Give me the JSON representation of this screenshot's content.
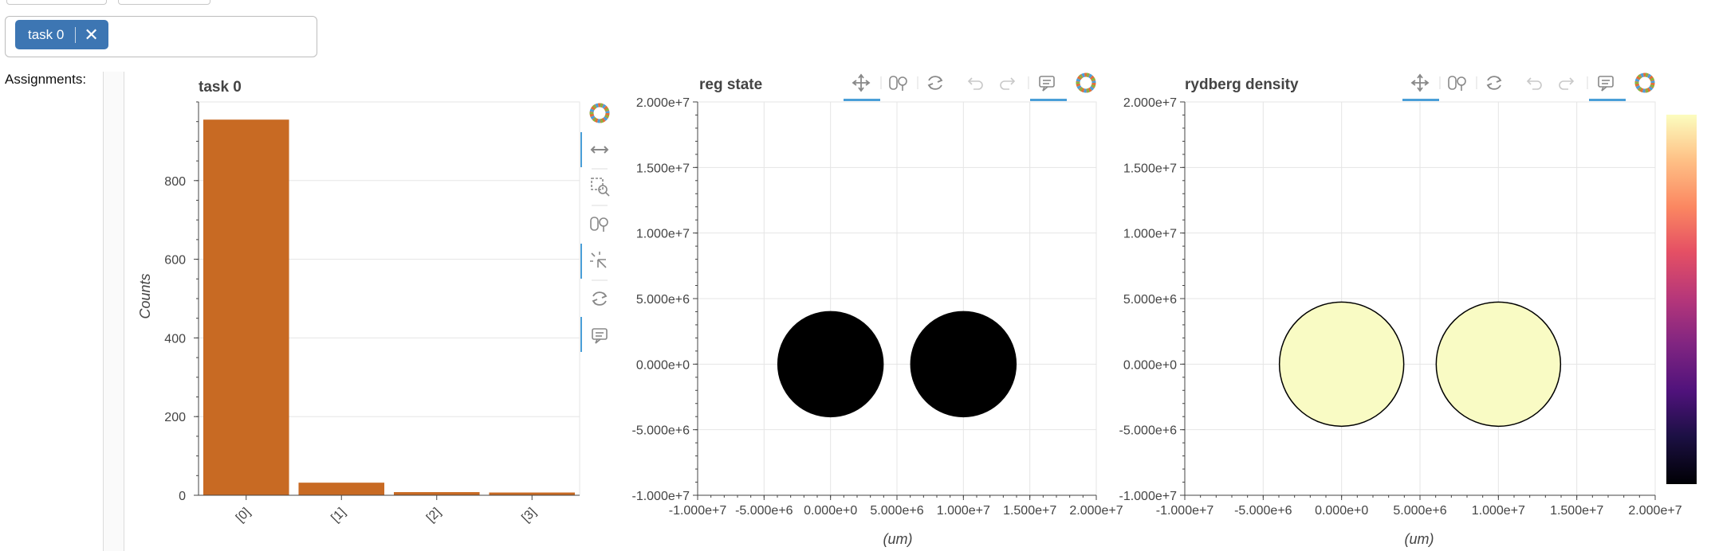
{
  "filter": {
    "chips": [
      {
        "label": "task 0",
        "remove_glyph": "✕"
      }
    ]
  },
  "assignments_label": "Assignments:",
  "colors": {
    "bar": "#c86a23",
    "dot_reg": "#000000",
    "dot_ryd": "#f9fbc4",
    "accent": "#4a9fd8"
  },
  "toolbar_icons": [
    "bokeh-logo-icon",
    "pan-icon",
    "box-zoom-icon",
    "wheel-zoom-icon",
    "tap-icon",
    "reset-icon",
    "hover-icon"
  ],
  "chart_data": [
    {
      "type": "bar",
      "title": "task 0",
      "xlabel": "",
      "ylabel": "Counts",
      "categories": [
        "[0]",
        "[1]",
        "[2]",
        "[3]"
      ],
      "values": [
        955,
        32,
        8,
        7
      ],
      "ylim": [
        0,
        1000
      ],
      "yticks": [
        0,
        200,
        400,
        600,
        800
      ],
      "grid": true
    },
    {
      "type": "scatter",
      "title": "reg state",
      "xlabel": "(um)",
      "ylabel": "",
      "x": [
        0,
        10000000
      ],
      "y": [
        0,
        0
      ],
      "xlim": [
        -10000000,
        20000000
      ],
      "ylim": [
        -10000000,
        20000000
      ],
      "xticks": [
        "-1.000e+7",
        "-5.000e+6",
        "0.000e+0",
        "5.000e+6",
        "1.000e+7",
        "1.500e+7",
        "2.000e+7"
      ],
      "yticks": [
        "-1.000e+7",
        "-5.000e+6",
        "0.000e+0",
        "5.000e+6",
        "1.000e+7",
        "1.500e+7",
        "2.000e+7"
      ],
      "grid": true
    },
    {
      "type": "scatter",
      "title": "rydberg density",
      "xlabel": "(um)",
      "ylabel": "",
      "x": [
        0,
        10000000
      ],
      "y": [
        0,
        0
      ],
      "xlim": [
        -10000000,
        20000000
      ],
      "ylim": [
        -10000000,
        20000000
      ],
      "xticks": [
        "-1.000e+7",
        "-5.000e+6",
        "0.000e+0",
        "5.000e+6",
        "1.000e+7",
        "1.500e+7",
        "2.000e+7"
      ],
      "yticks": [
        "-1.000e+7",
        "-5.000e+6",
        "0.000e+0",
        "5.000e+6",
        "1.000e+7",
        "1.500e+7",
        "2.000e+7"
      ],
      "grid": true,
      "colorbar": "magma"
    }
  ]
}
